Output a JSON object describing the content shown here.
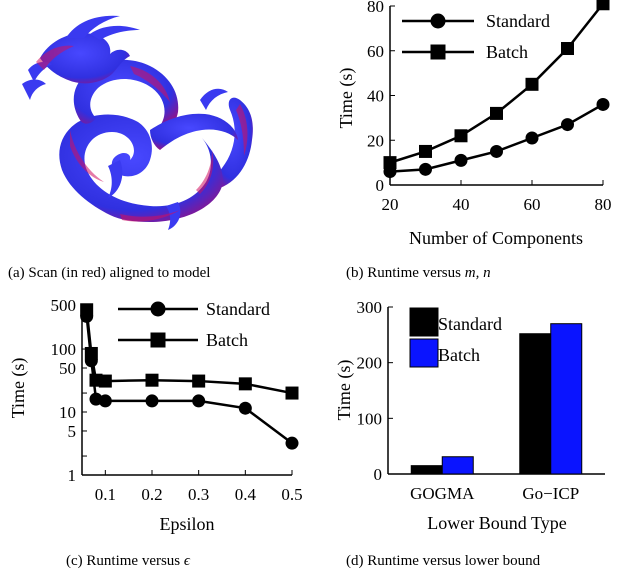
{
  "captions": {
    "a": "(a) Scan (in red) aligned to model",
    "b": "(b) Runtime versus ",
    "b_math": "m, n",
    "c": "(c) Runtime versus ",
    "c_math": "ϵ",
    "d": "(d) Runtime versus lower bound"
  },
  "colors": {
    "dragon_blue": "#3a3af0",
    "dragon_red": "#d01060",
    "bar_standard": "#000000",
    "bar_batch": "#0a14ff",
    "line": "#000000"
  },
  "chart_data": [
    {
      "id": "b",
      "type": "line",
      "xlabel": "Number of Components",
      "ylabel": "Time (s)",
      "xlim": [
        20,
        80
      ],
      "ylim": [
        0,
        80
      ],
      "xticks": [
        20,
        40,
        60,
        80
      ],
      "yticks": [
        0,
        20,
        40,
        60,
        80
      ],
      "legend_position": "top-left",
      "grid": false,
      "x": [
        20,
        30,
        40,
        50,
        60,
        70,
        80
      ],
      "series": [
        {
          "name": "Standard",
          "marker": "circle",
          "values": [
            6,
            7,
            11,
            15,
            21,
            27,
            36
          ]
        },
        {
          "name": "Batch",
          "marker": "square",
          "values": [
            10,
            15,
            22,
            32,
            45,
            61,
            81
          ]
        }
      ]
    },
    {
      "id": "c",
      "type": "line",
      "xlabel": "Epsilon",
      "ylabel": "Time (s)",
      "xlim": [
        0.05,
        0.5
      ],
      "ylim": [
        1,
        500
      ],
      "yscale": "log",
      "xticks": [
        0.1,
        0.2,
        0.3,
        0.4,
        0.5
      ],
      "yticks": [
        1,
        2,
        5,
        10,
        20,
        50,
        100,
        500
      ],
      "ytick_labels": [
        "1",
        "",
        "5",
        "10",
        "",
        "50",
        "100",
        "500"
      ],
      "legend_position": "top-right",
      "grid": false,
      "x": [
        0.06,
        0.07,
        0.08,
        0.1,
        0.2,
        0.3,
        0.4,
        0.5
      ],
      "series": [
        {
          "name": "Standard",
          "marker": "circle",
          "values": [
            330,
            65,
            16,
            15,
            15,
            15,
            11.5,
            3.2
          ]
        },
        {
          "name": "Batch",
          "marker": "square",
          "values": [
            420,
            85,
            32,
            31,
            32,
            31,
            28,
            20
          ]
        }
      ]
    },
    {
      "id": "d",
      "type": "bar",
      "xlabel": "Lower Bound Type",
      "ylabel": "Time (s)",
      "ylim": [
        0,
        300
      ],
      "yticks": [
        0,
        100,
        200,
        300
      ],
      "legend_position": "top-left",
      "grid": false,
      "categories": [
        "GOGMA",
        "Go−ICP"
      ],
      "series": [
        {
          "name": "Standard",
          "values": [
            15,
            252
          ]
        },
        {
          "name": "Batch",
          "values": [
            31,
            270
          ]
        }
      ]
    }
  ]
}
